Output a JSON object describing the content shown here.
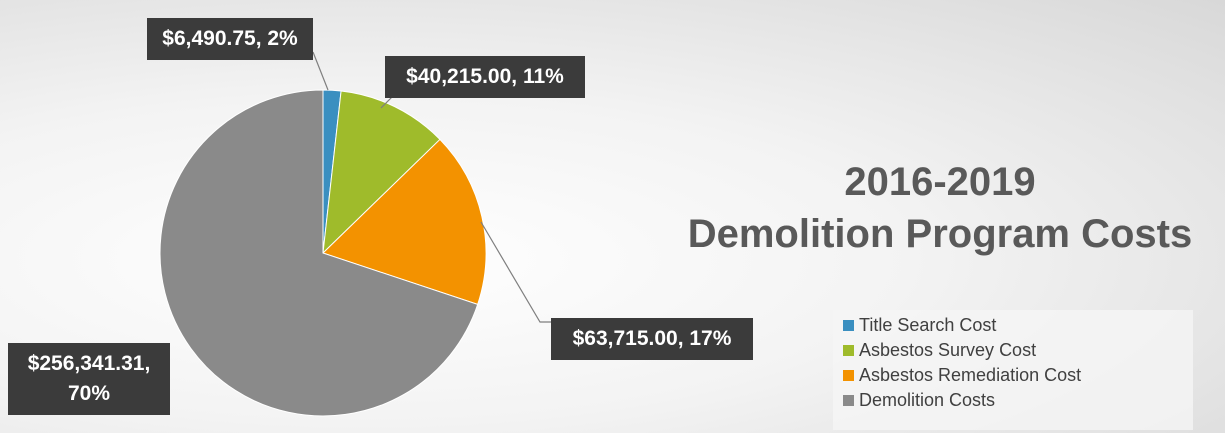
{
  "chart_data": {
    "type": "pie",
    "title": [
      "2016-2019",
      "Demolition Program Costs"
    ],
    "categories": [
      "Title Search Cost",
      "Asbestos Survey Cost",
      "Asbestos Remediation Cost",
      "Demolition Costs"
    ],
    "values": [
      6490.75,
      40215.0,
      63715.0,
      256341.31
    ],
    "value_labels": [
      "$6,490.75, 2%",
      "$40,215.00, 11%",
      "$63,715.00, 17%",
      "$256,341.31, 70%"
    ],
    "colors": [
      "#3a8fc0",
      "#9fbb2b",
      "#f39200",
      "#8a8a8a"
    ],
    "legend": "bottom-right"
  }
}
